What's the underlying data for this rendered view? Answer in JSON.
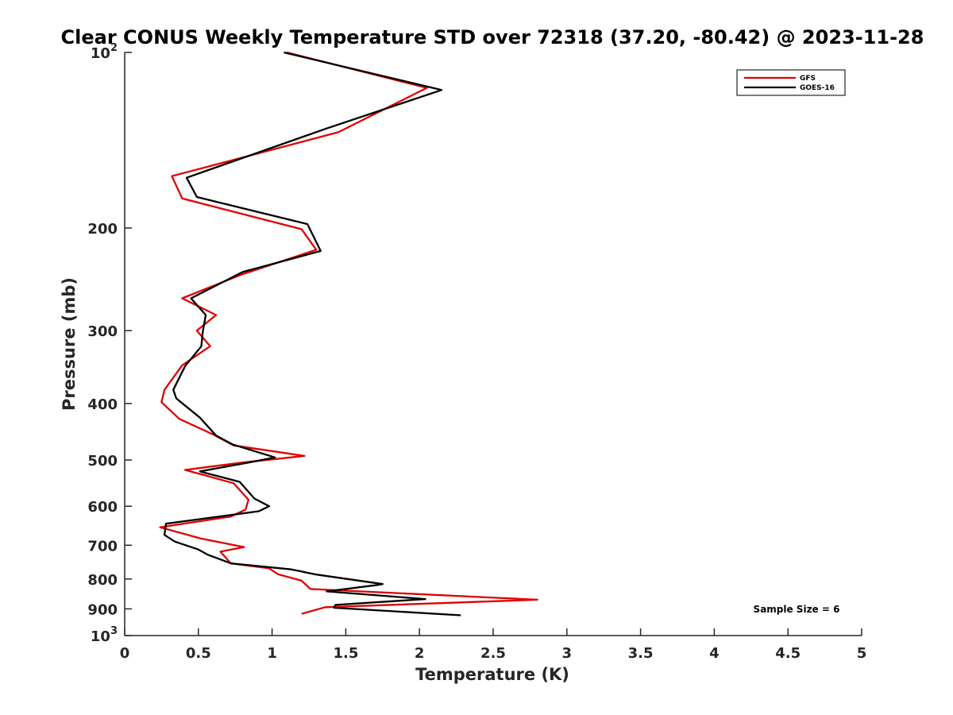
{
  "chart_data": {
    "type": "line",
    "title": "Clear CONUS Weekly Temperature STD over 72318 (37.20, -80.42) @ 2023-11-28",
    "xlabel": "Temperature (K)",
    "ylabel": "Pressure (mb)",
    "xlim": [
      0,
      5
    ],
    "ylim": [
      100,
      1000
    ],
    "y_scale": "log",
    "y_reversed": true,
    "grid": false,
    "legend_position": "top-right",
    "x_ticks": [
      "0",
      "0.5",
      "1",
      "1.5",
      "2",
      "2.5",
      "3",
      "3.5",
      "4",
      "4.5",
      "5"
    ],
    "y_tick_values": [
      100,
      200,
      300,
      400,
      500,
      600,
      700,
      800,
      900,
      1000
    ],
    "y_tick_labels": [
      {
        "value": 100,
        "base": "10",
        "exp": "2"
      },
      {
        "value": 200,
        "base": "200",
        "exp": ""
      },
      {
        "value": 300,
        "base": "300",
        "exp": ""
      },
      {
        "value": 400,
        "base": "400",
        "exp": ""
      },
      {
        "value": 500,
        "base": "500",
        "exp": ""
      },
      {
        "value": 600,
        "base": "600",
        "exp": ""
      },
      {
        "value": 700,
        "base": "700",
        "exp": ""
      },
      {
        "value": 800,
        "base": "800",
        "exp": ""
      },
      {
        "value": 900,
        "base": "900",
        "exp": ""
      },
      {
        "value": 1000,
        "base": "10",
        "exp": "3"
      }
    ],
    "annotation": "Sample Size = 6",
    "series": [
      {
        "name": "GFS",
        "color": "#e00000",
        "points": [
          [
            1.1,
            100
          ],
          [
            2.05,
            115
          ],
          [
            1.45,
            137
          ],
          [
            0.32,
            163
          ],
          [
            0.39,
            178
          ],
          [
            1.2,
            201
          ],
          [
            1.3,
            218
          ],
          [
            0.8,
            240
          ],
          [
            0.39,
            264
          ],
          [
            0.62,
            282
          ],
          [
            0.49,
            300
          ],
          [
            0.58,
            319
          ],
          [
            0.39,
            344
          ],
          [
            0.27,
            379
          ],
          [
            0.25,
            398
          ],
          [
            0.37,
            425
          ],
          [
            0.6,
            452
          ],
          [
            0.74,
            472
          ],
          [
            1.22,
            492
          ],
          [
            0.8,
            505
          ],
          [
            0.41,
            520
          ],
          [
            0.74,
            548
          ],
          [
            0.84,
            585
          ],
          [
            0.82,
            608
          ],
          [
            0.72,
            625
          ],
          [
            0.24,
            652
          ],
          [
            0.52,
            682
          ],
          [
            0.81,
            705
          ],
          [
            0.65,
            718
          ],
          [
            0.72,
            752
          ],
          [
            0.98,
            767
          ],
          [
            1.04,
            785
          ],
          [
            1.2,
            805
          ],
          [
            1.26,
            832
          ],
          [
            2.8,
            868
          ],
          [
            1.36,
            894
          ],
          [
            1.2,
            918
          ]
        ]
      },
      {
        "name": "GOES-16",
        "color": "#000000",
        "points": [
          [
            1.08,
            100
          ],
          [
            2.15,
            116
          ],
          [
            1.37,
            135
          ],
          [
            0.42,
            164
          ],
          [
            0.49,
            177
          ],
          [
            1.24,
            197
          ],
          [
            1.33,
            219
          ],
          [
            0.8,
            238
          ],
          [
            0.45,
            264
          ],
          [
            0.55,
            282
          ],
          [
            0.53,
            301
          ],
          [
            0.52,
            319
          ],
          [
            0.41,
            345
          ],
          [
            0.33,
            379
          ],
          [
            0.35,
            392
          ],
          [
            0.51,
            423
          ],
          [
            0.62,
            454
          ],
          [
            0.73,
            470
          ],
          [
            1.02,
            495
          ],
          [
            0.84,
            505
          ],
          [
            0.51,
            523
          ],
          [
            0.78,
            545
          ],
          [
            0.88,
            582
          ],
          [
            0.98,
            600
          ],
          [
            0.91,
            612
          ],
          [
            0.28,
            643
          ],
          [
            0.27,
            672
          ],
          [
            0.34,
            690
          ],
          [
            0.5,
            712
          ],
          [
            0.56,
            726
          ],
          [
            0.72,
            752
          ],
          [
            1.13,
            770
          ],
          [
            1.3,
            786
          ],
          [
            1.75,
            816
          ],
          [
            1.7,
            820
          ],
          [
            1.37,
            840
          ],
          [
            2.04,
            866
          ],
          [
            1.43,
            886
          ],
          [
            1.42,
            896
          ],
          [
            2.28,
            923
          ]
        ]
      }
    ]
  }
}
